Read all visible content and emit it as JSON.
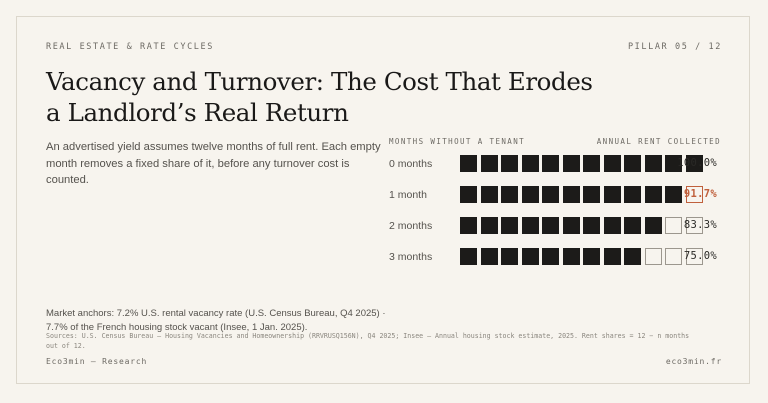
{
  "header": {
    "kicker": "REAL ESTATE & RATE CYCLES",
    "pillar": "PILLAR 05 / 12",
    "title": "Vacancy and Turnover: The Cost That Erodes a Landlord’s Real Return",
    "lede": "An advertised yield assumes twelve months of full rent. Each empty month removes a fixed share of it, before any turnover cost is counted."
  },
  "chart_data": {
    "type": "table",
    "column_left": "MONTHS WITHOUT A TENANT",
    "column_right": "ANNUAL RENT COLLECTED",
    "rows": [
      {
        "label": "0 months",
        "vacant_months": 0,
        "collected": "100.0%"
      },
      {
        "label": "1 month",
        "vacant_months": 1,
        "collected": "91.7%"
      },
      {
        "label": "2 months",
        "vacant_months": 2,
        "collected": "83.3%"
      },
      {
        "label": "3 months",
        "vacant_months": 3,
        "collected": "75.0%"
      }
    ],
    "months_per_year": 12
  },
  "colors": {
    "background": "#f7f4ee",
    "filled": "#1c1b19",
    "empty": "#9c978e",
    "accent": "#c0603c"
  },
  "notes": {
    "anchors": "Market anchors: 7.2% U.S. rental vacancy rate (U.S. Census Bureau, Q4 2025) · 7.7% of the French housing stock vacant (Insee, 1 Jan. 2025).",
    "sources": "Sources: U.S. Census Bureau — Housing Vacancies and Homeownership (RRVRUSQ156N), Q4 2025; Insee — Annual housing stock estimate, 2025. Rent shares = 12 − n months out of 12."
  },
  "footer": {
    "brand": "Eco3min — Research",
    "site": "eco3min.fr"
  }
}
